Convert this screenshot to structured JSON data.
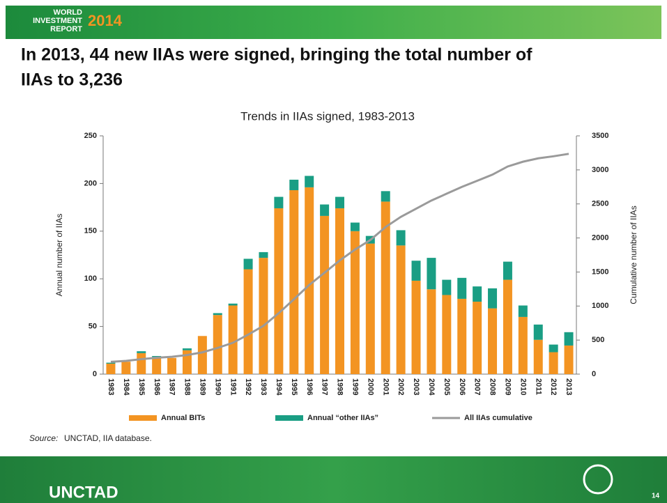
{
  "header": {
    "line1": "WORLD",
    "line2": "INVESTMENT",
    "line3": "REPORT",
    "year": "2014"
  },
  "slide_title": {
    "line1": "In 2013, 44 new IIAs were signed, bringing the total number of",
    "line2": "IIAs to 3,236"
  },
  "chart_data": {
    "type": "bar",
    "stacked": true,
    "title": "Trends in IIAs signed, 1983-2013",
    "y_label": "Annual number of IIAs",
    "y2_label": "Cumulative number of IIAs",
    "categories": [
      "1983",
      "1984",
      "1985",
      "1986",
      "1987",
      "1988",
      "1989",
      "1990",
      "1991",
      "1992",
      "1993",
      "1994",
      "1995",
      "1996",
      "1997",
      "1998",
      "1999",
      "2000",
      "2001",
      "2002",
      "2003",
      "2004",
      "2005",
      "2006",
      "2007",
      "2008",
      "2009",
      "2010",
      "2011",
      "2012",
      "2013"
    ],
    "ylim": [
      0,
      250
    ],
    "yticks": [
      0,
      50,
      100,
      150,
      200,
      250
    ],
    "y2lim": [
      0,
      3500
    ],
    "y2ticks": [
      0,
      500,
      1000,
      1500,
      2000,
      2500,
      3000,
      3500
    ],
    "series": [
      {
        "name": "Annual BITs",
        "type": "bar",
        "color": "#f39422",
        "values": [
          11,
          13,
          22,
          18,
          17,
          25,
          40,
          62,
          72,
          110,
          122,
          174,
          193,
          196,
          166,
          174,
          150,
          137,
          181,
          135,
          98,
          89,
          83,
          79,
          76,
          69,
          99,
          60,
          36,
          23,
          30
        ]
      },
      {
        "name": "Annual “other IIAs”",
        "type": "bar",
        "color": "#1a9e84",
        "values": [
          1,
          0,
          2,
          1,
          0,
          2,
          0,
          2,
          2,
          11,
          6,
          12,
          11,
          12,
          12,
          12,
          9,
          8,
          11,
          16,
          21,
          33,
          16,
          22,
          16,
          21,
          19,
          12,
          16,
          8,
          14
        ]
      },
      {
        "name": "All IIAs cumulative",
        "type": "line",
        "axis": "y2",
        "color": "#9a9a9a",
        "values": [
          180,
          195,
          220,
          240,
          255,
          280,
          320,
          385,
          460,
          580,
          710,
          895,
          1100,
          1310,
          1490,
          1670,
          1830,
          1970,
          2160,
          2310,
          2430,
          2550,
          2650,
          2750,
          2840,
          2930,
          3050,
          3120,
          3170,
          3200,
          3236
        ]
      }
    ],
    "legend": "bottom"
  },
  "source": {
    "label": "Source:",
    "text": "UNCTAD, IIA database."
  },
  "footer": {
    "org": "UNCTAD",
    "page": "14"
  }
}
